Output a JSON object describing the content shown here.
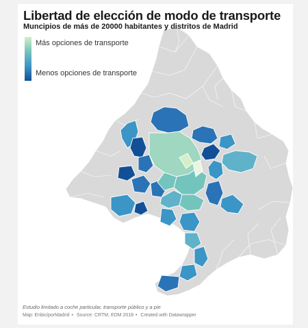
{
  "title": "Libertad de elección de modo de transporte",
  "subtitle": "Muncipios de más de 20000 habitantes y distritos de Madrid",
  "legend": {
    "top_label": "Más opciones de transporte",
    "bottom_label": "Menos opciones de transporte",
    "colors": [
      "#d4eec7",
      "#73c4bd",
      "#3b95c6",
      "#134f97"
    ]
  },
  "note": "Estudio limitado a coche particular, transporte público y a pie",
  "footer": {
    "map_credit": "Map: EnbicíporMadrid",
    "source": "Source: CRTM, EDM 2018",
    "tool": "Created with Datawrapper",
    "separator": "•"
  },
  "colors": {
    "background_region": "#d9d9d9",
    "region_border": "#ffffff",
    "darkest": "#134f97",
    "dark": "#2a73b6",
    "mid": "#3b95c6",
    "light_mid": "#5fb2c9",
    "light": "#9fd7c0",
    "lightest": "#d4eec7"
  }
}
